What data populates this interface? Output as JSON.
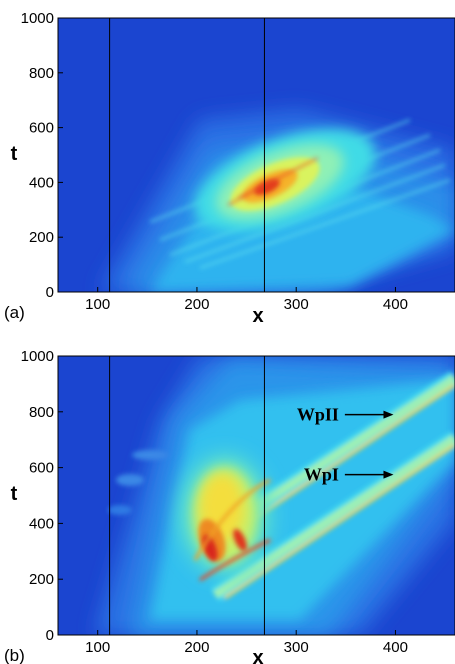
{
  "chart_data": [
    {
      "type": "heatmap",
      "panel_label": "(a)",
      "xlabel": "x",
      "ylabel": "t",
      "xlim": [
        60,
        460
      ],
      "ylim": [
        0,
        1000
      ],
      "x_ticks": [
        100,
        200,
        300,
        400
      ],
      "y_ticks": [
        0,
        200,
        400,
        600,
        800,
        1000
      ],
      "vertical_lines_x": [
        112,
        268
      ],
      "colormap": [
        "#1a3fcc",
        "#2b73e6",
        "#2aa8ef",
        "#34d6f0",
        "#76f0c0",
        "#c9f46a",
        "#f7e33c",
        "#f79a23",
        "#e8321c",
        "#c4101a"
      ],
      "description_peaks": [
        {
          "x": 268,
          "t": 390,
          "level": "max"
        }
      ],
      "annotations": []
    },
    {
      "type": "heatmap",
      "panel_label": "(b)",
      "xlabel": "x",
      "ylabel": "t",
      "xlim": [
        60,
        460
      ],
      "ylim": [
        0,
        1000
      ],
      "x_ticks": [
        100,
        200,
        300,
        400
      ],
      "y_ticks": [
        0,
        200,
        400,
        600,
        800,
        1000
      ],
      "vertical_lines_x": [
        112,
        268
      ],
      "colormap": [
        "#1a3fcc",
        "#2b73e6",
        "#2aa8ef",
        "#34d6f0",
        "#76f0c0",
        "#c9f46a",
        "#f7e33c",
        "#f79a23",
        "#e8321c",
        "#c4101a"
      ],
      "annotations": [
        {
          "text": "WpII",
          "x": 345,
          "t": 790,
          "arrow_to_x": 398,
          "arrow_to_t": 790
        },
        {
          "text": "WpI",
          "x": 345,
          "t": 575,
          "arrow_to_x": 398,
          "arrow_to_t": 575
        }
      ]
    }
  ]
}
